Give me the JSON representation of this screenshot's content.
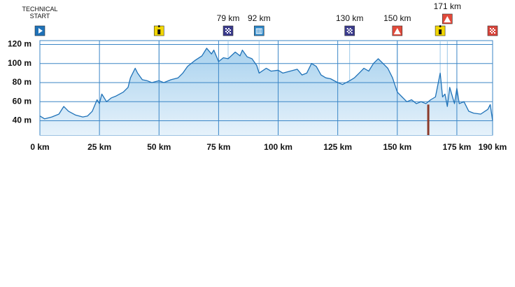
{
  "chart_data": {
    "type": "area",
    "x": [
      0,
      2,
      5,
      8,
      10,
      12,
      15,
      18,
      20,
      22,
      24,
      25,
      26,
      28,
      30,
      32,
      35,
      37,
      38,
      40,
      41,
      43,
      45,
      47,
      50,
      52,
      55,
      58,
      60,
      62,
      65,
      68,
      70,
      72,
      73,
      75,
      77,
      79,
      82,
      84,
      85,
      87,
      89,
      91,
      92,
      95,
      97,
      100,
      102,
      105,
      108,
      110,
      112,
      114,
      116,
      118,
      120,
      122,
      125,
      127,
      130,
      132,
      134,
      136,
      138,
      140,
      142,
      144,
      146,
      148,
      150,
      152,
      154,
      156,
      158,
      160,
      162,
      164,
      166,
      168,
      169,
      170,
      171,
      172,
      174,
      175,
      176,
      178,
      180,
      182,
      185,
      188,
      189,
      190
    ],
    "series": [
      {
        "color": "#1f72b8",
        "values": [
          45,
          42,
          44,
          47,
          55,
          50,
          46,
          44,
          45,
          50,
          62,
          58,
          68,
          60,
          64,
          66,
          70,
          75,
          85,
          95,
          90,
          83,
          82,
          80,
          82,
          80,
          83,
          85,
          90,
          97,
          103,
          108,
          116,
          110,
          114,
          102,
          106,
          105,
          112,
          108,
          114,
          107,
          105,
          98,
          90,
          95,
          92,
          93,
          90,
          92,
          94,
          88,
          90,
          100,
          97,
          88,
          85,
          84,
          80,
          78,
          82,
          85,
          90,
          95,
          92,
          100,
          105,
          100,
          95,
          85,
          70,
          65,
          60,
          62,
          58,
          60,
          58,
          62,
          65,
          90,
          65,
          68,
          55,
          75,
          58,
          74,
          58,
          60,
          50,
          48,
          47,
          52,
          57,
          40
        ]
      }
    ],
    "xlim": [
      0,
      190
    ],
    "ylim": [
      25,
      124
    ],
    "xticks": [
      {
        "value": 0,
        "label": "0 km"
      },
      {
        "value": 25,
        "label": "25 km"
      },
      {
        "value": 50,
        "label": "50 km"
      },
      {
        "value": 75,
        "label": "75 km"
      },
      {
        "value": 100,
        "label": "100 km"
      },
      {
        "value": 125,
        "label": "125 km"
      },
      {
        "value": 150,
        "label": "150 km"
      },
      {
        "value": 175,
        "label": "175 km"
      },
      {
        "value": 190,
        "label": "190 km"
      }
    ],
    "yticks": [
      {
        "value": 40,
        "label": "40 m"
      },
      {
        "value": 60,
        "label": "60 m"
      },
      {
        "value": 80,
        "label": "80 m"
      },
      {
        "value": 100,
        "label": "100 m"
      },
      {
        "value": 120,
        "label": "120 m"
      }
    ],
    "grid": true,
    "markers": [
      {
        "x": 0,
        "label": "TECHNICAL START",
        "icon": "start"
      },
      {
        "x": 50,
        "icon": "feed"
      },
      {
        "x": 79,
        "label": "79 km",
        "icon": "sprint"
      },
      {
        "x": 92,
        "label": "92 km",
        "icon": "supply"
      },
      {
        "x": 130,
        "label": "130 km",
        "icon": "sprint"
      },
      {
        "x": 150,
        "label": "150 km",
        "icon": "climb"
      },
      {
        "x": 168,
        "icon": "feed"
      },
      {
        "x": 171,
        "label": "171 km",
        "icon": "climb"
      },
      {
        "x": 190,
        "icon": "finish"
      }
    ],
    "bar_marker": {
      "x": 163,
      "y": 57,
      "color": "#8b3a2a"
    }
  }
}
